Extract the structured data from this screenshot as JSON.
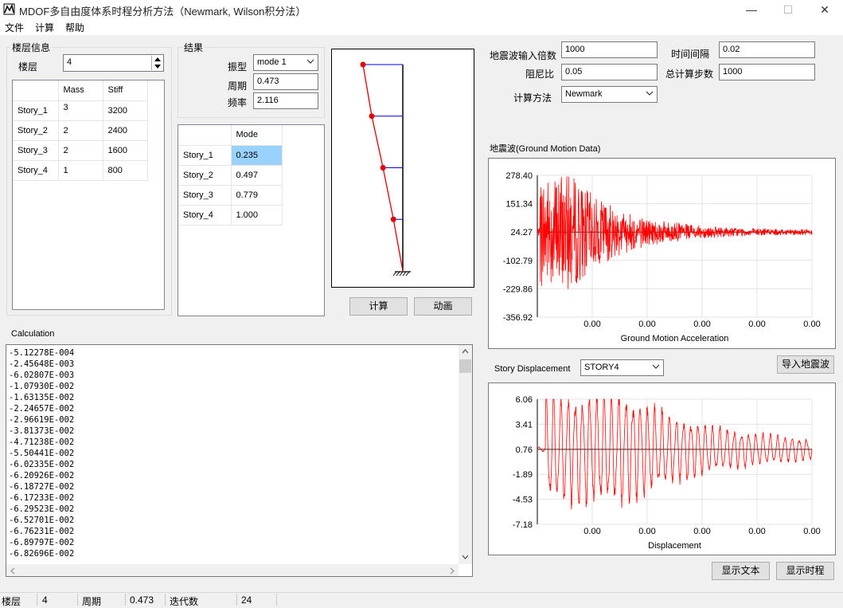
{
  "window": {
    "title": "MDOF多自由度体系时程分析方法（Newmark, Wilson积分法）",
    "minimize": "—",
    "maximize": "☐",
    "close": "✕"
  },
  "menu": [
    "文件",
    "计算",
    "帮助"
  ],
  "floor_info": {
    "group_label": "楼层信息",
    "floor_label": "楼层",
    "floor_value": "4",
    "headers": [
      "",
      "Mass",
      "Stiff"
    ],
    "rows": [
      {
        "name": "Story_1",
        "mass": "3",
        "stiff": "3200"
      },
      {
        "name": "Story_2",
        "mass": "2",
        "stiff": "2400"
      },
      {
        "name": "Story_3",
        "mass": "2",
        "stiff": "1600"
      },
      {
        "name": "Story_4",
        "mass": "1",
        "stiff": "800"
      }
    ]
  },
  "results": {
    "group_label": "结果",
    "mode_label": "振型",
    "mode_value": "mode 1",
    "period_label": "周期",
    "period_value": "0.473",
    "freq_label": "频率",
    "freq_value": "2.116",
    "mode_header": "Mode",
    "mode_rows": [
      {
        "name": "Story_1",
        "value": "0.235"
      },
      {
        "name": "Story_2",
        "value": "0.497"
      },
      {
        "name": "Story_3",
        "value": "0.779"
      },
      {
        "name": "Story_4",
        "value": "1.000"
      }
    ],
    "mode_shape": [
      0.235,
      0.497,
      0.779,
      1.0
    ]
  },
  "buttons": {
    "calc": "计算",
    "animate": "动画",
    "import_wave": "导入地震波",
    "show_text": "显示文本",
    "show_history": "显示时程"
  },
  "params": {
    "wave_mult_label": "地震波输入倍数",
    "wave_mult_value": "1000",
    "time_step_label": "时间间隔",
    "time_step_value": "0.02",
    "damping_label": "阻尼比",
    "damping_value": "0.05",
    "total_steps_label": "总计算步数",
    "total_steps_value": "1000",
    "method_label": "计算方法",
    "method_value": "Newmark"
  },
  "ground_motion": {
    "section_label": "地震波(Ground Motion Data)",
    "chart_data": {
      "type": "line",
      "xlabel": "Ground Motion Acceleration",
      "y_ticks": [
        "278.40",
        "151.34",
        "24.27",
        "-102.79",
        "-229.86",
        "-356.92"
      ],
      "x_ticks": [
        "0.00",
        "0.00",
        "0.00",
        "0.00",
        "0.00"
      ],
      "ylim": [
        -356.92,
        278.4
      ],
      "line_color": "#ff0000"
    }
  },
  "displacement": {
    "section_label": "Story Displacement",
    "story_value": "STORY4",
    "chart_data": {
      "type": "line",
      "xlabel": "Displacement",
      "y_ticks": [
        "6.06",
        "3.41",
        "0.76",
        "-1.89",
        "-4.53",
        "-7.18"
      ],
      "x_ticks": [
        "0.00",
        "0.00",
        "0.00",
        "0.00",
        "0.00"
      ],
      "ylim": [
        -7.18,
        6.06
      ],
      "line_color": "#ff0000"
    }
  },
  "calculation": {
    "label": "Calculation",
    "lines": [
      "-5.12278E-004",
      "-2.45648E-003",
      "-6.02807E-003",
      "-1.07930E-002",
      "-1.63135E-002",
      "-2.24657E-002",
      "-2.96619E-002",
      "-3.81373E-002",
      "-4.71238E-002",
      "-5.50441E-002",
      "-6.02335E-002",
      "-6.20926E-002",
      "-6.18727E-002",
      "-6.17233E-002",
      "-6.29523E-002",
      "-6.52701E-002",
      "-6.76231E-002",
      "-6.89797E-002",
      "-6.82696E-002"
    ]
  },
  "status": {
    "floor_label": "楼层",
    "floor_value": "4",
    "period_label": "周期",
    "period_value": "0.473",
    "iter_label": "迭代数",
    "iter_value": "24"
  }
}
